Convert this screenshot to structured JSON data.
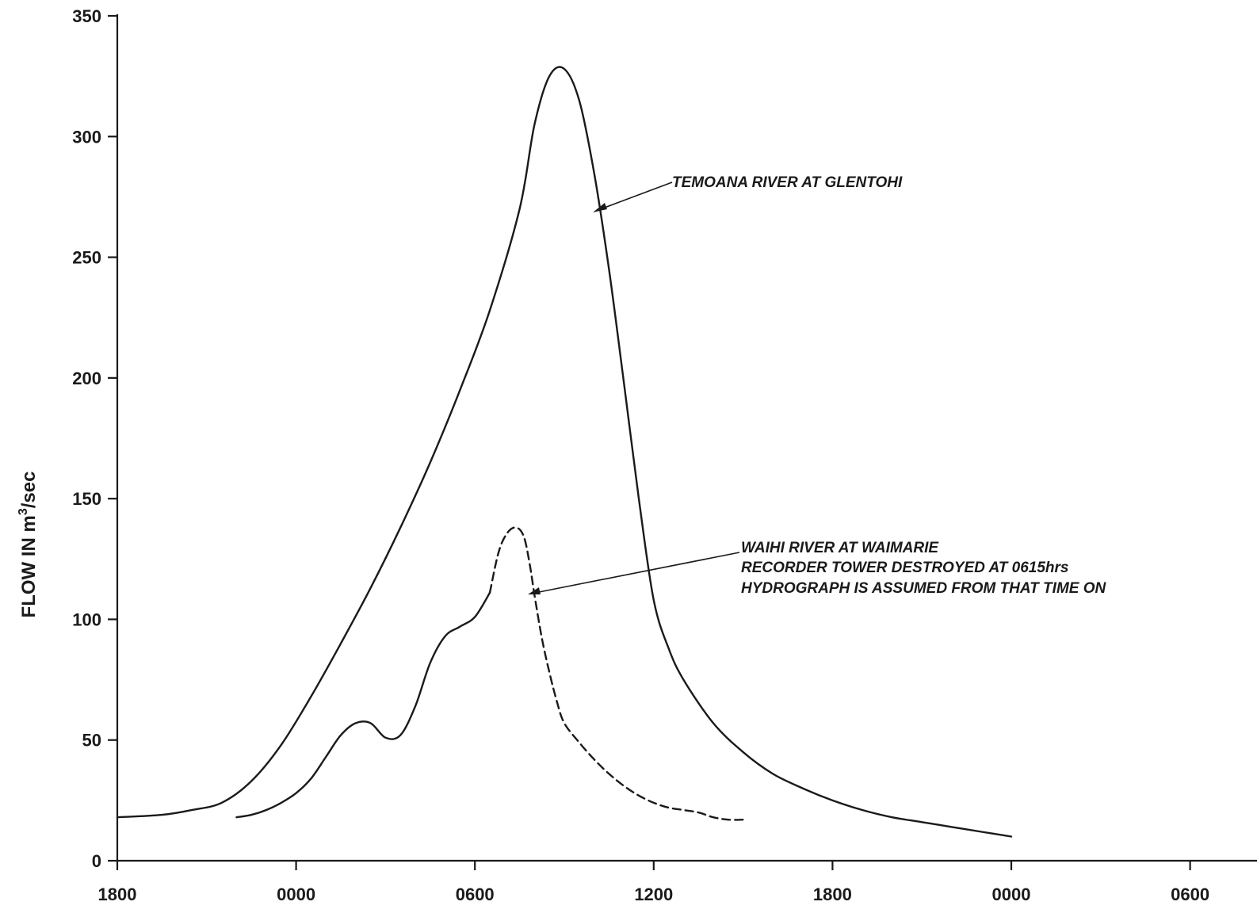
{
  "chart_data": {
    "type": "line",
    "title": "",
    "xlabel": "",
    "ylabel": "FLOW IN m3/sec",
    "ylabel_parts": {
      "main": "FLOW IN m",
      "sup": "3",
      "tail": "/sec"
    },
    "ylim": [
      0,
      350
    ],
    "xlim_hours": [
      0,
      60
    ],
    "x_ticks": [
      {
        "hour": 0,
        "label": "1800"
      },
      {
        "hour": 12,
        "label": "0000"
      },
      {
        "hour": 24,
        "label": "0600"
      },
      {
        "hour": 36,
        "label": "1200"
      },
      {
        "hour": 48,
        "label": "1800"
      },
      {
        "hour": 60,
        "label": "0000"
      },
      {
        "hour": 72,
        "label": "0600"
      }
    ],
    "y_ticks": [
      0,
      50,
      100,
      150,
      200,
      250,
      300,
      350
    ],
    "grid": false,
    "series": [
      {
        "name": "TEMOANA RIVER AT GLENTOHI",
        "style": "solid",
        "points": [
          [
            0,
            18
          ],
          [
            3,
            19
          ],
          [
            5,
            21
          ],
          [
            7,
            24
          ],
          [
            9,
            33
          ],
          [
            11,
            48
          ],
          [
            13,
            68
          ],
          [
            15,
            90
          ],
          [
            17,
            113
          ],
          [
            19,
            138
          ],
          [
            21,
            165
          ],
          [
            23,
            195
          ],
          [
            25,
            228
          ],
          [
            27,
            270
          ],
          [
            28,
            305
          ],
          [
            29,
            325
          ],
          [
            30,
            328
          ],
          [
            31,
            315
          ],
          [
            32,
            285
          ],
          [
            33,
            245
          ],
          [
            34,
            198
          ],
          [
            35,
            150
          ],
          [
            36,
            108
          ],
          [
            37,
            88
          ],
          [
            38,
            75
          ],
          [
            40,
            57
          ],
          [
            42,
            45
          ],
          [
            44,
            36
          ],
          [
            46,
            30
          ],
          [
            48,
            25
          ],
          [
            50,
            21
          ],
          [
            52,
            18
          ],
          [
            54,
            16
          ],
          [
            56,
            14
          ],
          [
            58,
            12
          ],
          [
            60,
            10
          ]
        ]
      },
      {
        "name": "WAIHI RIVER AT WAIMARIE",
        "style": "solid",
        "points": [
          [
            8,
            18
          ],
          [
            9,
            19
          ],
          [
            10,
            21
          ],
          [
            11,
            24
          ],
          [
            12,
            28
          ],
          [
            13,
            34
          ],
          [
            14,
            43
          ],
          [
            15,
            52
          ],
          [
            16,
            57
          ],
          [
            17,
            57
          ],
          [
            18,
            51
          ],
          [
            19,
            52
          ],
          [
            20,
            64
          ],
          [
            21,
            82
          ],
          [
            22,
            93
          ],
          [
            23,
            97
          ],
          [
            24,
            101
          ],
          [
            25,
            111
          ]
        ]
      },
      {
        "name": "WAIHI RIVER AT WAIMARIE (assumed)",
        "style": "dashed",
        "points": [
          [
            25,
            111
          ],
          [
            25.6,
            128
          ],
          [
            26.2,
            136
          ],
          [
            26.8,
            138
          ],
          [
            27.3,
            134
          ],
          [
            27.7,
            122
          ],
          [
            28,
            110
          ],
          [
            28.5,
            92
          ],
          [
            29,
            78
          ],
          [
            29.5,
            66
          ],
          [
            30,
            57
          ],
          [
            31,
            49
          ],
          [
            32,
            42
          ],
          [
            33,
            36
          ],
          [
            34,
            31
          ],
          [
            35,
            27
          ],
          [
            36,
            24
          ],
          [
            37,
            22
          ],
          [
            38,
            21
          ],
          [
            39,
            20
          ],
          [
            40,
            18
          ],
          [
            41,
            17
          ],
          [
            42,
            17
          ]
        ]
      }
    ],
    "annotations": [
      {
        "text": "TEMOANA RIVER AT GLENTOHI"
      },
      {
        "text": "WAIHI RIVER AT WAIMARIE"
      },
      {
        "text": "RECORDER TOWER DESTROYED AT 0615hrs"
      },
      {
        "text": "HYDROGRAPH IS ASSUMED FROM THAT TIME ON"
      }
    ]
  }
}
